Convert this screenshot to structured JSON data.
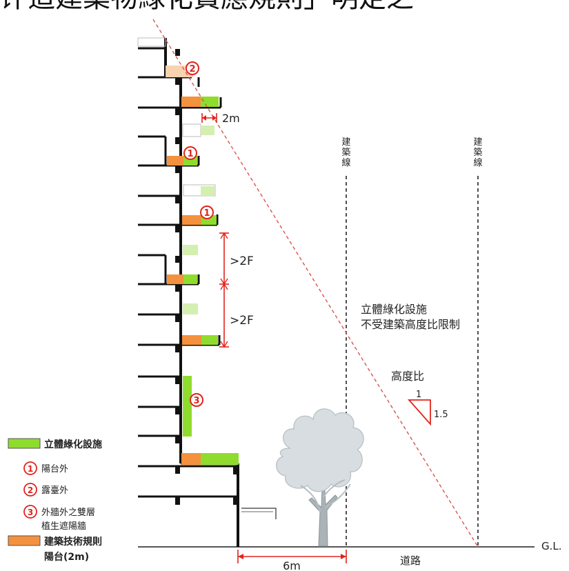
{
  "title_fragment": "评造建築物綠化費應規則」明定之",
  "labels": {
    "dim_2m": "2m",
    "dim_2f_upper": ">2F",
    "dim_2f_lower": ">2F",
    "dim_6m": "6m",
    "building_line_1": "建築線",
    "building_line_2": "建築線",
    "note_line1": "立體綠化設施",
    "note_line2": "不受建築高度比限制",
    "height_ratio": "高度比",
    "ratio_rise": "1",
    "ratio_run": "1.5",
    "ground_level": "G.L.",
    "road": "道路"
  },
  "markers": {
    "balcony": "①",
    "terrace": "②",
    "double_wall": "③"
  },
  "legend": {
    "green_facility": "立體綠化設施",
    "item1": "陽台外",
    "item2": "露臺外",
    "item3_line1": "外牆外之雙層",
    "item3_line2": "植生遮陽牆",
    "orange_line1": "建築技術規則",
    "orange_line2": "陽台(2m)"
  },
  "colors": {
    "green": "#8fdc2e",
    "green_light": "#d4efb0",
    "orange": "#f3913e",
    "orange_light": "#f9d2b0",
    "red": "#e0231b",
    "dashed_red": "#d9534f",
    "tree": "#d7dde0",
    "black": "#111111"
  }
}
